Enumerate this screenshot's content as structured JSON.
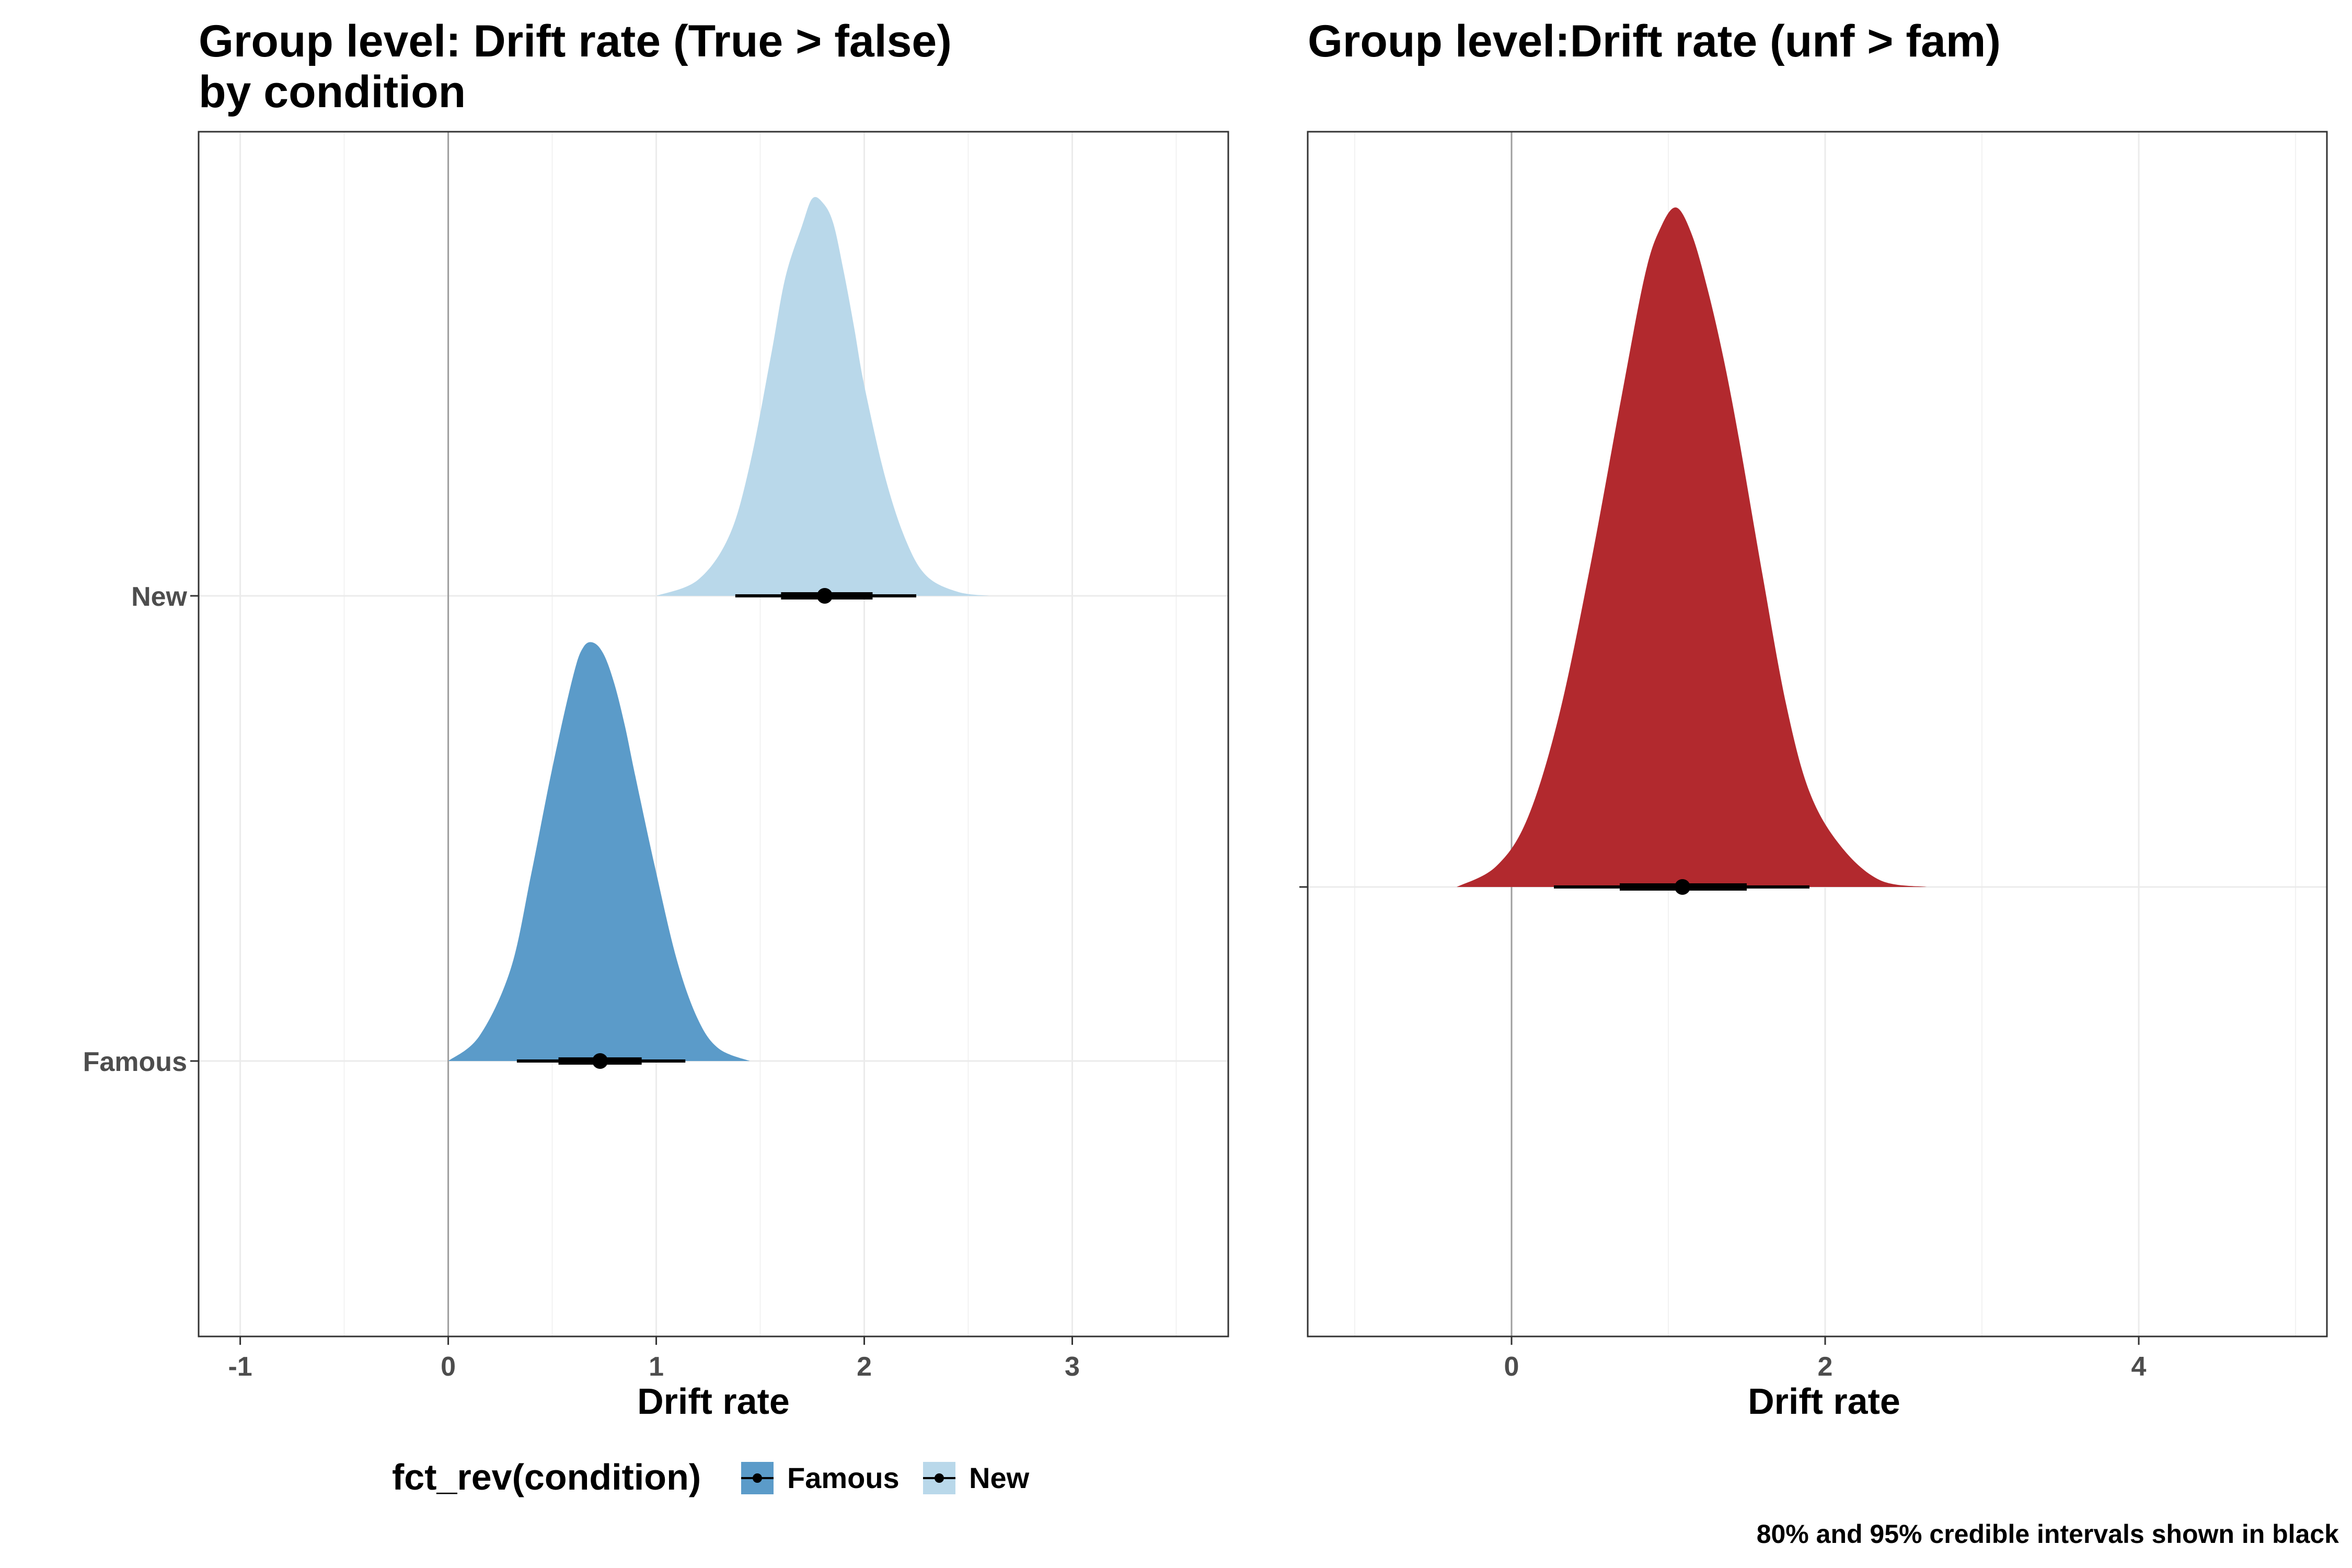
{
  "chart_data": [
    {
      "type": "density",
      "title_lines": [
        "Group level: Drift rate (True > false)",
        "by condition"
      ],
      "xlabel": "Drift rate",
      "ylabel": "",
      "xlim": [
        -1.2,
        3.75
      ],
      "xticks": [
        -1,
        0,
        1,
        2,
        3
      ],
      "xtick_labels": [
        "-1",
        "0",
        "1",
        "2",
        "3"
      ],
      "categories": [
        "Famous",
        "New"
      ],
      "grid": true,
      "reference_line_x": 0,
      "legend": {
        "title": "fct_rev(condition)",
        "position": "bottom",
        "entries": [
          {
            "label": "Famous",
            "color": "#5b9bc9"
          },
          {
            "label": "New",
            "color": "#b9d8ea"
          }
        ]
      },
      "series": [
        {
          "name": "New",
          "color": "#b9d8ea",
          "row": 1,
          "density": {
            "x": [
              1.0,
              1.2,
              1.35,
              1.45,
              1.55,
              1.62,
              1.7,
              1.75,
              1.8,
              1.85,
              1.9,
              1.95,
              2.0,
              2.1,
              2.2,
              2.3,
              2.45,
              2.6
            ],
            "y": [
              0.0,
              0.04,
              0.15,
              0.33,
              0.6,
              0.8,
              0.93,
              1.0,
              0.99,
              0.94,
              0.82,
              0.68,
              0.53,
              0.3,
              0.14,
              0.05,
              0.01,
              0.0
            ]
          },
          "median": 1.81,
          "ci80": [
            1.6,
            2.04
          ],
          "ci95": [
            1.38,
            2.25
          ]
        },
        {
          "name": "Famous",
          "color": "#5b9bc9",
          "row": 0,
          "density": {
            "x": [
              0.0,
              0.15,
              0.3,
              0.4,
              0.5,
              0.6,
              0.65,
              0.7,
              0.75,
              0.8,
              0.85,
              0.9,
              1.0,
              1.1,
              1.2,
              1.3,
              1.45
            ],
            "y": [
              0.0,
              0.06,
              0.22,
              0.45,
              0.7,
              0.92,
              0.99,
              1.0,
              0.97,
              0.9,
              0.8,
              0.68,
              0.45,
              0.24,
              0.1,
              0.03,
              0.0
            ]
          },
          "median": 0.73,
          "ci80": [
            0.53,
            0.93
          ],
          "ci95": [
            0.33,
            1.14
          ]
        }
      ]
    },
    {
      "type": "density",
      "title": "Group level:Drift rate (unf > fam)",
      "xlabel": "Drift rate",
      "ylabel": "",
      "xlim": [
        -1.3,
        5.2
      ],
      "xticks": [
        0,
        2,
        4
      ],
      "xtick_labels": [
        "0",
        "2",
        "4"
      ],
      "grid": true,
      "reference_line_x": 0,
      "series": [
        {
          "color": "#b2292e",
          "density": {
            "x": [
              -0.35,
              -0.1,
              0.1,
              0.3,
              0.5,
              0.7,
              0.85,
              0.95,
              1.05,
              1.15,
              1.25,
              1.35,
              1.45,
              1.6,
              1.75,
              1.9,
              2.1,
              2.35,
              2.65
            ],
            "y": [
              0.0,
              0.03,
              0.1,
              0.25,
              0.47,
              0.72,
              0.9,
              0.97,
              1.0,
              0.96,
              0.88,
              0.78,
              0.66,
              0.46,
              0.27,
              0.14,
              0.06,
              0.01,
              0.0
            ]
          },
          "median": 1.09,
          "ci80": [
            0.69,
            1.5
          ],
          "ci95": [
            0.27,
            1.9
          ]
        }
      ]
    }
  ],
  "caption": "80% and 95% credible intervals shown in black"
}
